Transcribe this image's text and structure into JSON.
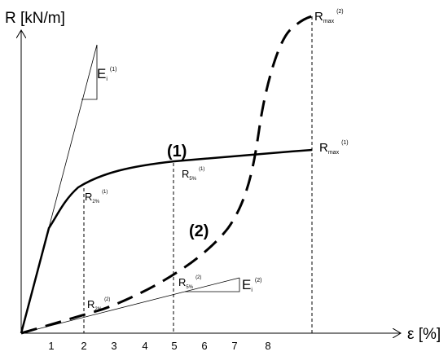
{
  "chart_data": {
    "type": "line",
    "y_axis_label": "R [kN/m]",
    "x_axis_label": "ε [%]",
    "x_ticks": [
      "1",
      "2",
      "3",
      "4",
      "5",
      "6",
      "7",
      "8"
    ],
    "series": [
      {
        "name": "(1)",
        "style": "solid",
        "points": [
          [
            0,
            0
          ],
          [
            0.9,
            3.3
          ],
          [
            1.4,
            4.1
          ],
          [
            2,
            4.6
          ],
          [
            3,
            5.0
          ],
          [
            4,
            5.25
          ],
          [
            5,
            5.4
          ],
          [
            6,
            5.5
          ],
          [
            7,
            5.6
          ],
          [
            8,
            5.68
          ],
          [
            9,
            5.75
          ]
        ]
      },
      {
        "name": "(2)",
        "style": "dashed",
        "points": [
          [
            0,
            0
          ],
          [
            1,
            0.25
          ],
          [
            2,
            0.5
          ],
          [
            3,
            0.8
          ],
          [
            4,
            1.15
          ],
          [
            5,
            1.75
          ],
          [
            6,
            2.7
          ],
          [
            6.9,
            4.3
          ],
          [
            7.3,
            6.0
          ],
          [
            7.7,
            8.1
          ],
          [
            8.1,
            9.1
          ],
          [
            8.6,
            9.65
          ],
          [
            9,
            9.9
          ]
        ]
      }
    ],
    "annotations": [
      {
        "id": "e1",
        "main": "E",
        "sub": "i",
        "sup": "(1)"
      },
      {
        "id": "e2",
        "main": "E",
        "sub": "i",
        "sup": "(2)"
      },
      {
        "id": "r2_1",
        "main": "R",
        "sub": "2%",
        "sup": "(1)"
      },
      {
        "id": "r5_1",
        "main": "R",
        "sub": "5%",
        "sup": "(1)"
      },
      {
        "id": "r2_2",
        "main": "R",
        "sub": "2%",
        "sup": "(2)"
      },
      {
        "id": "r5_2",
        "main": "R",
        "sub": "5%",
        "sup": "(2)"
      },
      {
        "id": "rmax1",
        "main": "R",
        "sub": "max",
        "sup": "(1)"
      },
      {
        "id": "rmax2",
        "main": "R",
        "sub": "max",
        "sup": "(2)"
      }
    ],
    "colors": {
      "line": "#000000",
      "background": "#ffffff"
    },
    "grid": false
  }
}
